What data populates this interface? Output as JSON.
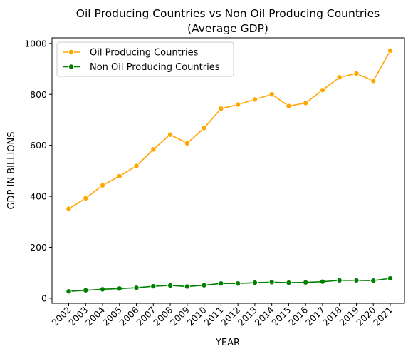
{
  "chart_data": {
    "type": "line",
    "title_line1": "Oil Producing Countries vs Non Oil Producing Countries",
    "title_line2": "(Average GDP)",
    "xlabel": "YEAR",
    "ylabel": "GDP IN BILLIONS",
    "categories": [
      "2002",
      "2003",
      "2004",
      "2005",
      "2006",
      "2007",
      "2008",
      "2009",
      "2010",
      "2011",
      "2012",
      "2013",
      "2014",
      "2015",
      "2016",
      "2017",
      "2018",
      "2019",
      "2020",
      "2021"
    ],
    "yticks": [
      0,
      200,
      400,
      600,
      800,
      1000
    ],
    "ylim": [
      -20,
      1022
    ],
    "grid": false,
    "legend_position": "upper-left",
    "series": [
      {
        "name": "Oil Producing Countries",
        "color": "#ffa500",
        "values": [
          351,
          392,
          443,
          479,
          519,
          584,
          642,
          608,
          668,
          744,
          760,
          780,
          800,
          754,
          766,
          817,
          867,
          882,
          853,
          972
        ]
      },
      {
        "name": "Non Oil Producing Countries",
        "color": "#008000",
        "values": [
          27,
          31,
          35,
          38,
          41,
          47,
          50,
          46,
          51,
          58,
          58,
          61,
          63,
          61,
          62,
          65,
          70,
          70,
          69,
          78
        ]
      }
    ]
  }
}
